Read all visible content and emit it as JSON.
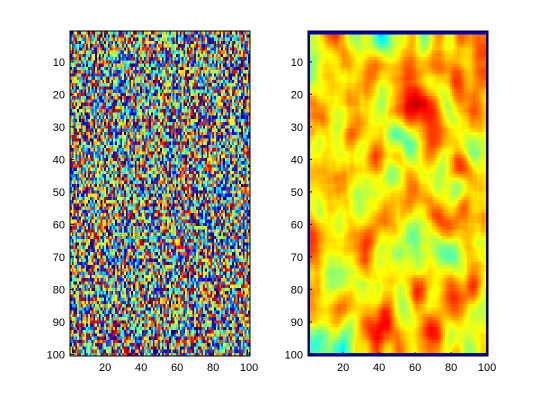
{
  "figure": {
    "background": "#ffffff",
    "colormap": "jet"
  },
  "chart_data": [
    {
      "type": "heatmap",
      "title": "",
      "xlabel": "",
      "ylabel": "",
      "data_description_note": null,
      "xlim": [
        1,
        100
      ],
      "ylim": [
        100,
        1
      ],
      "y_direction": "reversed",
      "x_ticks": [
        "20",
        "40",
        "60",
        "80",
        "100"
      ],
      "y_ticks": [
        "10",
        "20",
        "30",
        "40",
        "50",
        "60",
        "70",
        "80",
        "90",
        "100"
      ],
      "grid": false,
      "colorbar": false,
      "rows": 100,
      "cols": 100,
      "value_range": [
        0,
        1
      ],
      "pattern": "random"
    },
    {
      "type": "heatmap",
      "title": "",
      "xlabel": "",
      "ylabel": "",
      "xlim": [
        1,
        100
      ],
      "ylim": [
        100,
        1
      ],
      "y_direction": "reversed",
      "x_ticks": [
        "20",
        "40",
        "60",
        "80",
        "100"
      ],
      "y_ticks": [
        "10",
        "20",
        "30",
        "40",
        "50",
        "60",
        "70",
        "80",
        "90",
        "100"
      ],
      "grid": false,
      "colorbar": false,
      "rows": 100,
      "cols": 100,
      "value_range": [
        0,
        1
      ],
      "pattern": "smoothed"
    }
  ]
}
